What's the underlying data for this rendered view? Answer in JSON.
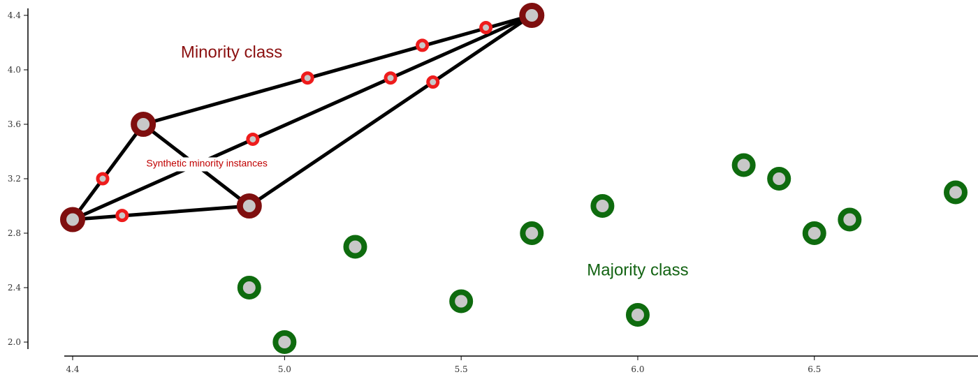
{
  "chart_data": {
    "type": "scatter",
    "title": "",
    "xlabel": "",
    "ylabel": "",
    "xlim": [
      4.4,
      6.95
    ],
    "ylim": [
      2.0,
      4.4
    ],
    "grid": false,
    "x_ticks": [
      {
        "value": 4.4,
        "label": "4.4"
      },
      {
        "value": 5.0,
        "label": "5.0"
      },
      {
        "value": 5.5,
        "label": "5.5"
      },
      {
        "value": 6.0,
        "label": "6.0"
      },
      {
        "value": 6.5,
        "label": "6.5"
      }
    ],
    "y_ticks": [
      {
        "value": 2.0,
        "label": "2.0"
      },
      {
        "value": 2.4,
        "label": "2.4"
      },
      {
        "value": 2.8,
        "label": "2.8"
      },
      {
        "value": 3.2,
        "label": "3.2"
      },
      {
        "value": 3.6,
        "label": "3.6"
      },
      {
        "value": 4.0,
        "label": "4.0"
      },
      {
        "value": 4.4,
        "label": "4.4"
      }
    ],
    "series": [
      {
        "name": "Minority class",
        "color": "#7f0f0f",
        "points": [
          {
            "x": 4.4,
            "y": 2.9
          },
          {
            "x": 4.6,
            "y": 3.6
          },
          {
            "x": 4.9,
            "y": 3.0
          },
          {
            "x": 5.7,
            "y": 4.4
          }
        ]
      },
      {
        "name": "Majority class",
        "color": "#0e6b0e",
        "points": [
          {
            "x": 4.9,
            "y": 2.4
          },
          {
            "x": 5.0,
            "y": 2.0
          },
          {
            "x": 5.2,
            "y": 2.7
          },
          {
            "x": 5.5,
            "y": 2.3
          },
          {
            "x": 5.7,
            "y": 2.8
          },
          {
            "x": 5.9,
            "y": 3.0
          },
          {
            "x": 6.0,
            "y": 2.2
          },
          {
            "x": 6.3,
            "y": 3.3
          },
          {
            "x": 6.4,
            "y": 3.2
          },
          {
            "x": 6.5,
            "y": 2.8
          },
          {
            "x": 6.6,
            "y": 2.9
          },
          {
            "x": 6.9,
            "y": 3.1
          }
        ]
      },
      {
        "name": "Synthetic minority instances",
        "color": "#ee1c1c",
        "points": [
          {
            "x": 4.485,
            "y": 3.2
          },
          {
            "x": 4.54,
            "y": 2.93
          },
          {
            "x": 4.91,
            "y": 3.49
          },
          {
            "x": 5.065,
            "y": 3.94
          },
          {
            "x": 5.3,
            "y": 3.94
          },
          {
            "x": 5.39,
            "y": 4.18
          },
          {
            "x": 5.42,
            "y": 3.91
          },
          {
            "x": 5.57,
            "y": 4.31
          }
        ]
      }
    ],
    "segments": [
      {
        "from": [
          4.4,
          2.9
        ],
        "to": [
          4.6,
          3.6
        ]
      },
      {
        "from": [
          4.4,
          2.9
        ],
        "to": [
          4.9,
          3.0
        ]
      },
      {
        "from": [
          4.4,
          2.9
        ],
        "to": [
          5.7,
          4.4
        ]
      },
      {
        "from": [
          4.6,
          3.6
        ],
        "to": [
          4.9,
          3.0
        ]
      },
      {
        "from": [
          4.6,
          3.6
        ],
        "to": [
          5.7,
          4.4
        ]
      },
      {
        "from": [
          4.9,
          3.0
        ],
        "to": [
          5.7,
          4.4
        ]
      }
    ],
    "annotations": [
      {
        "text": "Minority class",
        "x": 4.85,
        "y": 4.09,
        "color": "#8b1010",
        "size": "large"
      },
      {
        "text": "Synthetic minority instances",
        "x": 4.78,
        "y": 3.29,
        "color": "#c00000",
        "size": "small"
      },
      {
        "text": "Majority class",
        "x": 6.0,
        "y": 2.49,
        "color": "#136313",
        "size": "large"
      }
    ]
  }
}
